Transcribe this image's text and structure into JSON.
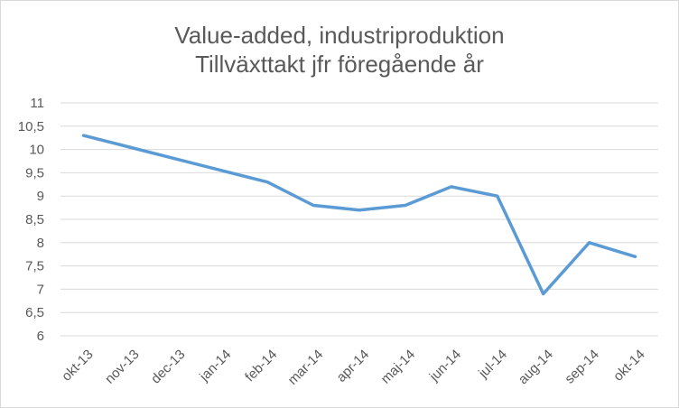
{
  "chart_data": {
    "type": "line",
    "title": "Value-added,  industriproduktion",
    "subtitle": "Tillväxttakt jfr föregående  år",
    "xlabel": "",
    "ylabel": "",
    "categories": [
      "okt-13",
      "nov-13",
      "dec-13",
      "jan-14",
      "feb-14",
      "mar-14",
      "apr-14",
      "maj-14",
      "jun-14",
      "jul-14",
      "aug-14",
      "sep-14",
      "okt-14"
    ],
    "series": [
      {
        "values": [
          10.3,
          10.05,
          9.8,
          9.55,
          9.3,
          8.8,
          8.7,
          8.8,
          9.2,
          9.0,
          6.9,
          8.0,
          7.7
        ],
        "color": "#5b9bd5"
      }
    ],
    "ylim": [
      6,
      11
    ],
    "yticks": [
      "6",
      "6,5",
      "7",
      "7,5",
      "8",
      "8,5",
      "9",
      "9,5",
      "10",
      "10,5",
      "11"
    ],
    "grid": true,
    "legend": "none"
  }
}
